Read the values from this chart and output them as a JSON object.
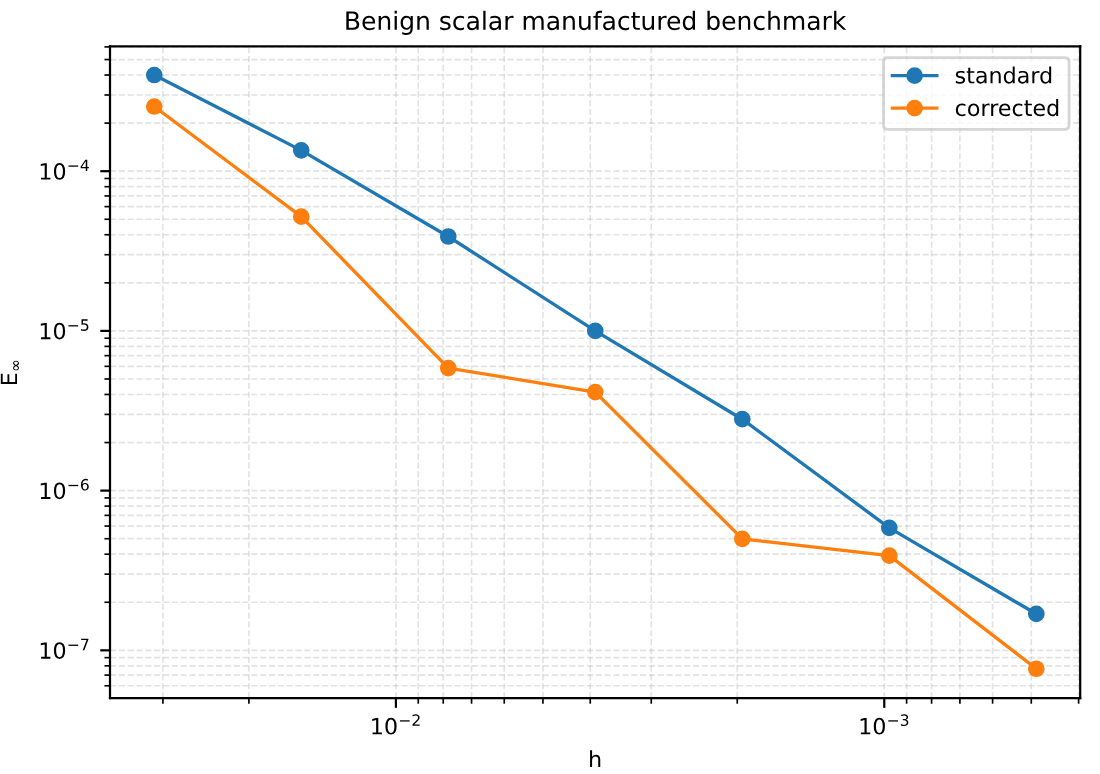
{
  "chart_data": {
    "type": "line",
    "title": "Benign scalar manufactured benchmark",
    "xlabel": "h",
    "ylabel": "E$_{∞}$",
    "x": [
      0.03125,
      0.015625,
      0.0078125,
      0.00390625,
      0.001953125,
      0.0009765625,
      0.00048828125
    ],
    "series": [
      {
        "name": "standard",
        "color": "#1f77b4",
        "values": [
          0.0004,
          0.000135,
          3.9e-05,
          1e-05,
          2.8e-06,
          5.85e-07,
          1.69e-07
        ]
      },
      {
        "name": "corrected",
        "color": "#ff7f0e",
        "values": [
          0.000254,
          5.19e-05,
          5.85e-06,
          4.14e-06,
          4.99e-07,
          3.92e-07,
          7.67e-08
        ]
      }
    ],
    "log": "xy",
    "xlim": [
      0.0385,
      0.000397
    ],
    "ylim": [
      5.02e-08,
      0.000604
    ],
    "xticks": [
      {
        "value": 0.01,
        "label": "10$^{−2}$"
      },
      {
        "value": 0.001,
        "label": "10$^{−3}$"
      }
    ],
    "yticks": [
      {
        "value": 1e-07,
        "label": "10$^{−7}$"
      },
      {
        "value": 1e-06,
        "label": "10$^{−6}$"
      },
      {
        "value": 1e-05,
        "label": "10$^{−5}$"
      },
      {
        "value": 0.0001,
        "label": "10$^{−4}$"
      }
    ],
    "grid": true,
    "legend": "top right",
    "marker": "circle",
    "line_style": "solid"
  }
}
